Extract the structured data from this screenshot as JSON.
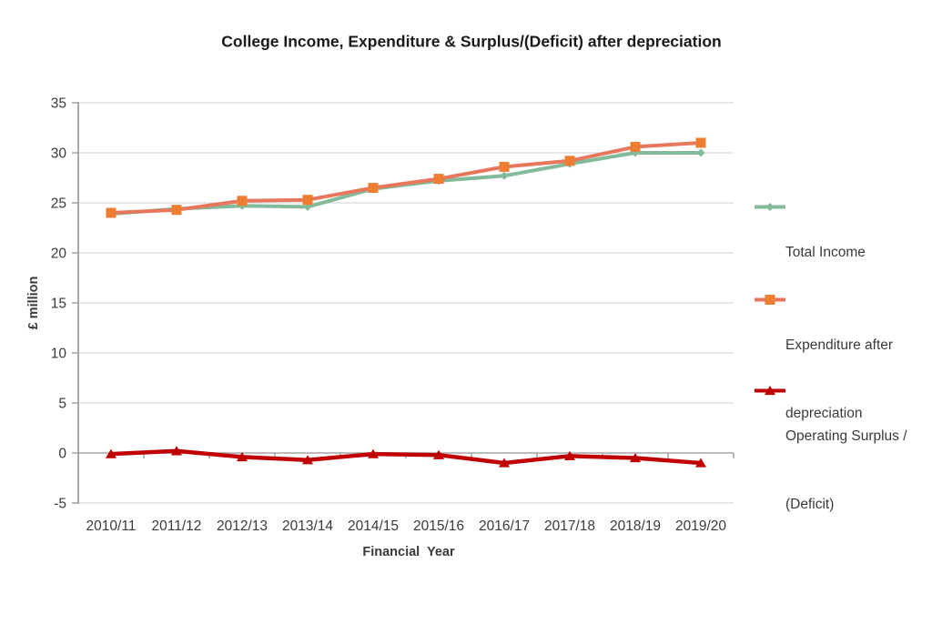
{
  "title": "College Income, Expenditure & Surplus/(Deficit) after depreciation",
  "chart_data": {
    "type": "line",
    "title": "College Income, Expenditure & Surplus/(Deficit) after depreciation",
    "xlabel": "Financial  Year",
    "ylabel": "£ million",
    "ylim": [
      -5,
      35
    ],
    "ytick_step": 5,
    "grid": true,
    "legend_position": "right",
    "categories": [
      "2010/11",
      "2011/12",
      "2012/13",
      "2013/14",
      "2014/15",
      "2015/16",
      "2016/17",
      "2017/18",
      "2018/19",
      "2019/20"
    ],
    "series": [
      {
        "name": "Total Income",
        "legend_lines": [
          "Total Income"
        ],
        "marker": "diamond",
        "color": "#82BA9A",
        "marker_color": "#82BA9A",
        "values": [
          23.9,
          24.4,
          24.7,
          24.6,
          26.4,
          27.2,
          27.7,
          28.9,
          30.0,
          30.0
        ]
      },
      {
        "name": "Expenditure after depreciation",
        "legend_lines": [
          "Expenditure after",
          "depreciation"
        ],
        "marker": "square",
        "color": "#E8765C",
        "marker_color": "#ED7D31",
        "values": [
          24.0,
          24.3,
          25.2,
          25.3,
          26.5,
          27.4,
          28.6,
          29.2,
          30.6,
          31.0
        ]
      },
      {
        "name": "Operating Surplus / (Deficit)",
        "legend_lines": [
          "Operating Surplus /",
          "(Deficit)"
        ],
        "marker": "triangle",
        "color": "#C00000",
        "marker_color": "#C00000",
        "values": [
          -0.1,
          0.2,
          -0.4,
          -0.7,
          -0.1,
          -0.2,
          -1.0,
          -0.3,
          -0.5,
          -1.0
        ]
      }
    ],
    "axis_color": "#A6A6A6",
    "gridline_color": "#D9D9D9",
    "text_color": "#3a3a3a"
  }
}
